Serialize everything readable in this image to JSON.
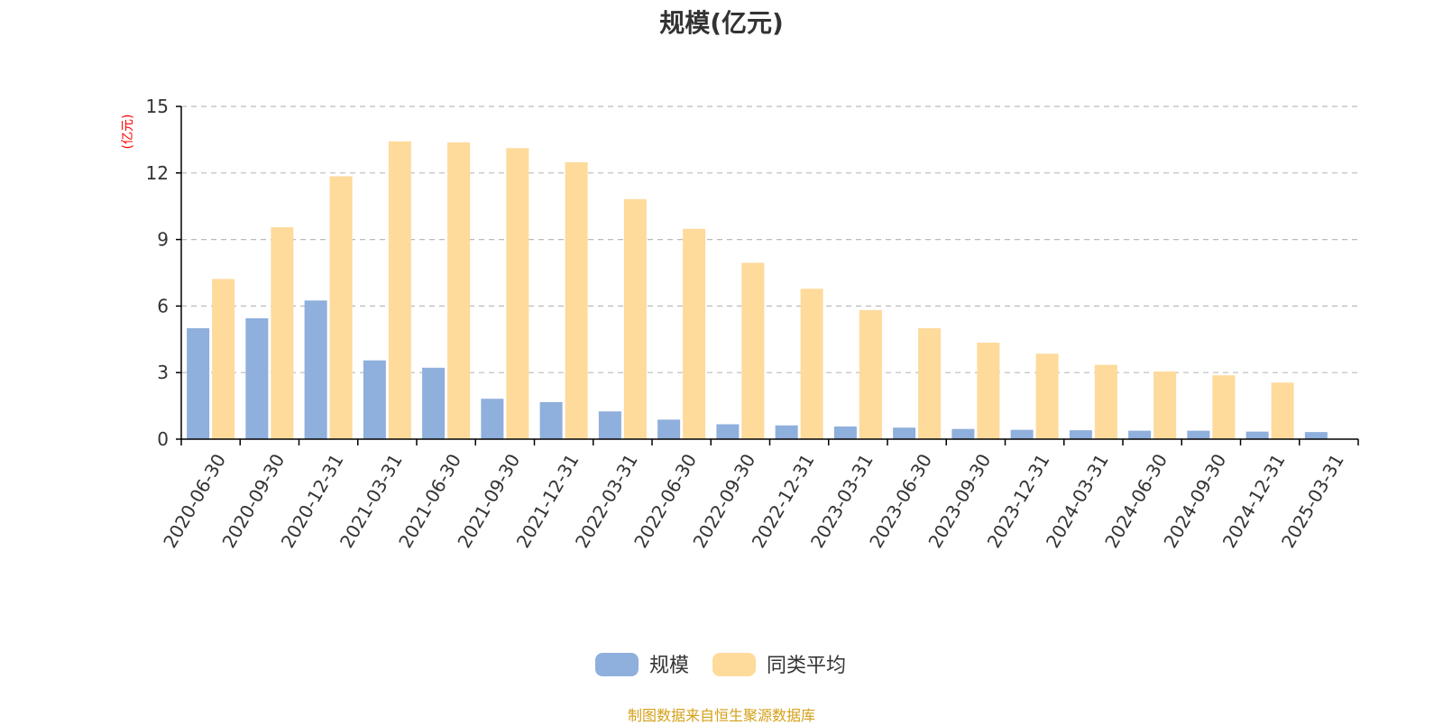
{
  "source_note": "制图数据来自恒生聚源数据库",
  "colors": {
    "scale": "#8FAFDC",
    "average": "#FEDA9B",
    "axis": "#000000",
    "grid": "#bbbbbb",
    "ylabel": "#ff0000",
    "source": "#d4a017"
  },
  "chart_data": {
    "type": "bar",
    "title": "规模(亿元)",
    "ylabel": "(亿元)",
    "xlabel": "",
    "ylim": [
      0,
      15
    ],
    "yticks": [
      0,
      3,
      6,
      9,
      12,
      15
    ],
    "grid": true,
    "legend_position": "bottom-center",
    "categories": [
      "2020-06-30",
      "2020-09-30",
      "2020-12-31",
      "2021-03-31",
      "2021-06-30",
      "2021-09-30",
      "2021-12-31",
      "2022-03-31",
      "2022-06-30",
      "2022-09-30",
      "2022-12-31",
      "2023-03-31",
      "2023-06-30",
      "2023-09-30",
      "2023-12-31",
      "2024-03-31",
      "2024-06-30",
      "2024-09-30",
      "2024-12-31",
      "2025-03-31"
    ],
    "series": [
      {
        "name": "规模",
        "color": "#8FAFDC",
        "values": [
          5.0,
          5.45,
          6.25,
          3.55,
          3.22,
          1.82,
          1.67,
          1.25,
          0.88,
          0.67,
          0.62,
          0.57,
          0.52,
          0.46,
          0.42,
          0.4,
          0.38,
          0.38,
          0.34,
          0.32
        ]
      },
      {
        "name": "同类平均",
        "color": "#FEDA9B",
        "values": [
          7.22,
          9.55,
          11.85,
          13.42,
          13.38,
          13.12,
          12.48,
          10.82,
          9.48,
          7.95,
          6.78,
          5.82,
          5.0,
          4.35,
          3.85,
          3.35,
          3.05,
          2.88,
          2.55,
          null
        ]
      }
    ]
  }
}
